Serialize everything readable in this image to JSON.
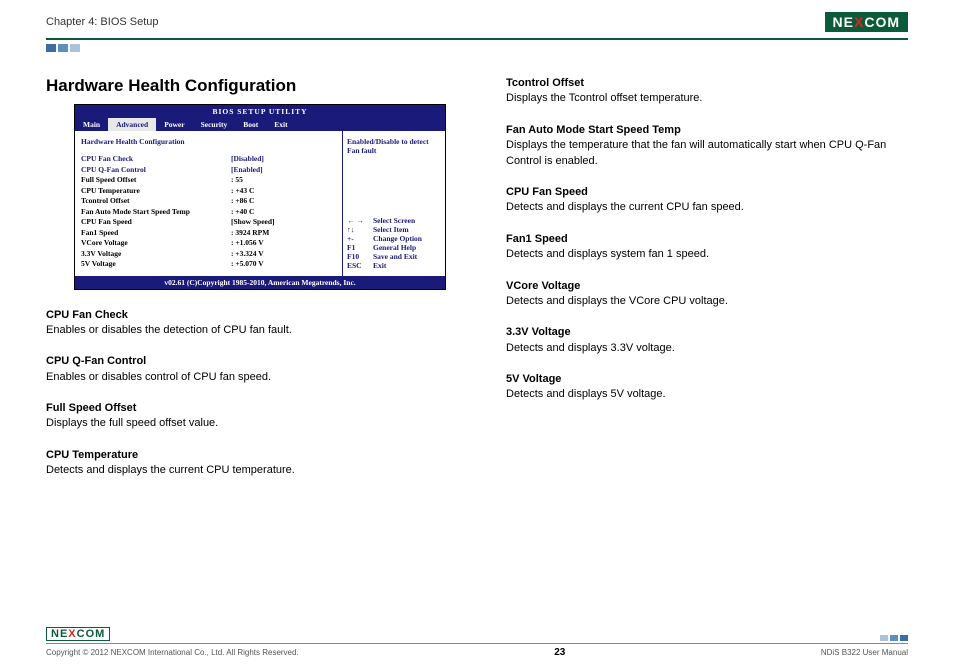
{
  "header": {
    "chapter": "Chapter 4: BIOS Setup",
    "logo_pre": "NE",
    "logo_x": "X",
    "logo_post": "COM",
    "square_colors": [
      "#3a6fa6",
      "#5b8fc2",
      "#a8c4dd"
    ]
  },
  "section_title": "Hardware Health Configuration",
  "bios": {
    "utility_title": "BIOS  SETUP  UTILITY",
    "tabs": [
      {
        "label": "Main",
        "active": false
      },
      {
        "label": "Advanced",
        "active": true
      },
      {
        "label": "Power",
        "active": false
      },
      {
        "label": "Security",
        "active": false
      },
      {
        "label": "Boot",
        "active": false
      },
      {
        "label": "Exit",
        "active": false
      }
    ],
    "subheader": "Hardware  Health  Configuration",
    "rows": [
      {
        "label": "CPU  Fan  Check",
        "value": "[Disabled]",
        "blue": true
      },
      {
        "label": "CPU  Q-Fan  Control",
        "value": "[Enabled]",
        "blue": true
      },
      {
        "label": "Full Speed Offset",
        "value": ": 55",
        "blue": false
      },
      {
        "label": "CPU Temperature",
        "value": ": +43 C",
        "blue": false
      },
      {
        "label": "Tcontrol Offset",
        "value": ": +86 C",
        "blue": false
      },
      {
        "label": "Fan Auto Mode Start Speed Temp",
        "value": ": +40 C",
        "blue": false
      },
      {
        "label": "CPU Fan Speed",
        "value": "[Show Speed]",
        "blue": false
      },
      {
        "label": "Fan1 Speed",
        "value": ": 3924 RPM",
        "blue": false
      },
      {
        "label": "VCore Voltage",
        "value": ": +1.056 V",
        "blue": false
      },
      {
        "label": "3.3V Voltage",
        "value": ": +3.324 V",
        "blue": false
      },
      {
        "label": "5V Voltage",
        "value": ": +5.070 V",
        "blue": false
      }
    ],
    "side_help": "Enabled/Disable to detect Fan fault",
    "nav": [
      {
        "key": "← →",
        "text": "Select Screen"
      },
      {
        "key": "↑↓",
        "text": "Select Item"
      },
      {
        "key": "+-",
        "text": "Change Option"
      },
      {
        "key": "F1",
        "text": "General Help"
      },
      {
        "key": "F10",
        "text": "Save and Exit"
      },
      {
        "key": "ESC",
        "text": "Exit"
      }
    ],
    "footer": "v02.61 (C)Copyright 1985-2010, American Megatrends, Inc."
  },
  "descriptions_left": [
    {
      "title": "CPU Fan Check",
      "body": "Enables or disables the detection of CPU fan fault."
    },
    {
      "title": "CPU Q-Fan Control",
      "body": "Enables or disables control of CPU fan speed."
    },
    {
      "title": "Full Speed Offset",
      "body": "Displays the full speed offset value."
    },
    {
      "title": "CPU Temperature",
      "body": "Detects and displays the current CPU temperature."
    }
  ],
  "descriptions_right": [
    {
      "title": "Tcontrol Offset",
      "body": "Displays the Tcontrol offset temperature."
    },
    {
      "title": "Fan Auto Mode Start Speed Temp",
      "body": "Displays the temperature that the fan will automatically start when CPU Q-Fan Control is enabled."
    },
    {
      "title": "CPU Fan Speed",
      "body": "Detects and displays the current CPU fan speed."
    },
    {
      "title": "Fan1 Speed",
      "body": "Detects and displays system fan 1 speed."
    },
    {
      "title": "VCore Voltage",
      "body": "Detects and displays the VCore CPU voltage."
    },
    {
      "title": "3.3V Voltage",
      "body": "Detects and displays 3.3V voltage."
    },
    {
      "title": "5V Voltage",
      "body": "Detects and displays 5V voltage."
    }
  ],
  "footer": {
    "copyright": "Copyright © 2012 NEXCOM International Co., Ltd. All Rights Reserved.",
    "page": "23",
    "manual": "NDiS B322 User Manual",
    "square_colors": [
      "#a8c4dd",
      "#5b8fc2",
      "#3a6fa6"
    ]
  }
}
